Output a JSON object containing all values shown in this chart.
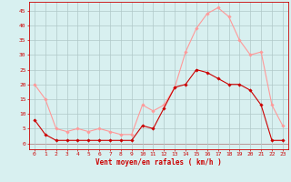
{
  "hours": [
    0,
    1,
    2,
    3,
    4,
    5,
    6,
    7,
    8,
    9,
    10,
    11,
    12,
    13,
    14,
    15,
    16,
    17,
    18,
    19,
    20,
    21,
    22,
    23
  ],
  "wind_mean": [
    8,
    3,
    1,
    1,
    1,
    1,
    1,
    1,
    1,
    1,
    6,
    5,
    12,
    19,
    20,
    25,
    24,
    22,
    20,
    20,
    18,
    13,
    1,
    1
  ],
  "wind_gust": [
    20,
    15,
    5,
    4,
    5,
    4,
    5,
    4,
    3,
    3,
    13,
    11,
    13,
    19,
    31,
    39,
    44,
    46,
    43,
    35,
    30,
    31,
    13,
    6
  ],
  "bg_color": "#d8f0f0",
  "grid_color": "#b0c8c8",
  "line_color_mean": "#cc0000",
  "line_color_gust": "#ff9999",
  "xlabel": "Vent moyen/en rafales ( km/h )",
  "yticks": [
    0,
    5,
    10,
    15,
    20,
    25,
    30,
    35,
    40,
    45
  ],
  "ylim": [
    -2,
    48
  ],
  "xlim": [
    -0.5,
    23.5
  ]
}
